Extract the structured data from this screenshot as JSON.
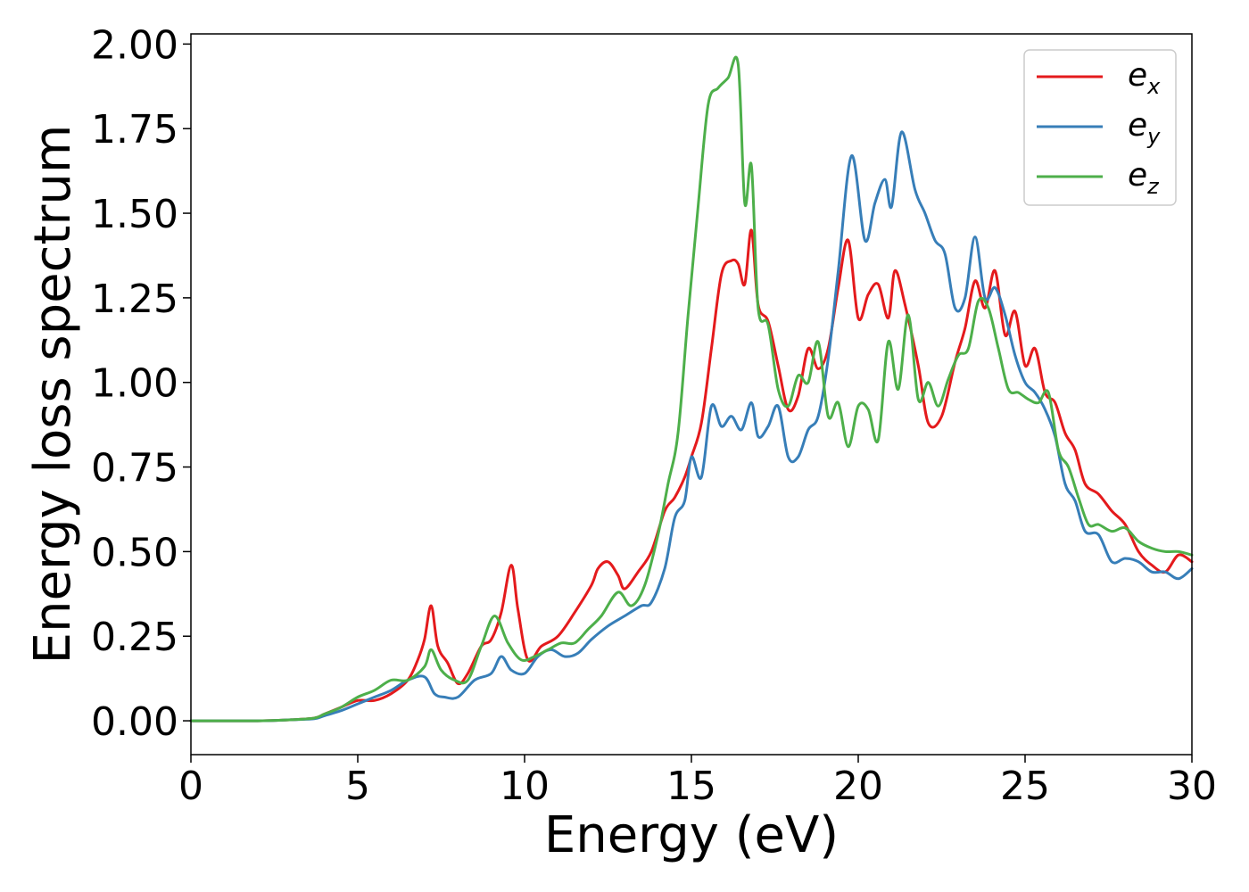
{
  "chart_data": {
    "type": "line",
    "title": "",
    "xlabel": "Energy (eV)",
    "ylabel": "Energy loss spectrum",
    "xlim": [
      0,
      30
    ],
    "ylim": [
      -0.1,
      2.03
    ],
    "xticks": [
      0,
      5,
      10,
      15,
      20,
      25,
      30
    ],
    "xtick_labels": [
      "0",
      "5",
      "10",
      "15",
      "20",
      "25",
      "30"
    ],
    "yticks": [
      0.0,
      0.25,
      0.5,
      0.75,
      1.0,
      1.25,
      1.5,
      1.75,
      2.0
    ],
    "ytick_labels": [
      "0.00",
      "0.25",
      "0.50",
      "0.75",
      "1.00",
      "1.25",
      "1.50",
      "1.75",
      "2.00"
    ],
    "grid": false,
    "legend_position": "top-right",
    "series": [
      {
        "name": "e_x",
        "legend_base": "e",
        "legend_sub": "x",
        "color": "#e41a1c",
        "x": [
          0,
          2,
          3,
          3.7,
          4.0,
          4.5,
          5.0,
          5.5,
          6.0,
          6.5,
          6.8,
          7.0,
          7.2,
          7.4,
          7.7,
          8.0,
          8.3,
          8.7,
          9.0,
          9.3,
          9.6,
          9.8,
          10.1,
          10.5,
          11.0,
          11.5,
          12.0,
          12.2,
          12.5,
          12.8,
          13.0,
          13.4,
          13.8,
          14.2,
          14.5,
          14.8,
          15.0,
          15.3,
          15.6,
          15.9,
          16.2,
          16.4,
          16.6,
          16.8,
          17.0,
          17.3,
          17.6,
          17.9,
          18.2,
          18.5,
          18.8,
          19.1,
          19.4,
          19.7,
          20.0,
          20.3,
          20.6,
          20.9,
          21.1,
          21.4,
          21.8,
          22.1,
          22.5,
          22.9,
          23.2,
          23.5,
          23.8,
          24.1,
          24.4,
          24.7,
          25.0,
          25.3,
          25.6,
          25.9,
          26.2,
          26.5,
          26.8,
          27.2,
          27.6,
          28.0,
          28.4,
          28.8,
          29.2,
          29.6,
          30.0
        ],
        "y": [
          0.0,
          0.0,
          0.003,
          0.008,
          0.02,
          0.04,
          0.06,
          0.06,
          0.08,
          0.12,
          0.18,
          0.24,
          0.34,
          0.22,
          0.17,
          0.11,
          0.14,
          0.22,
          0.24,
          0.32,
          0.46,
          0.33,
          0.18,
          0.22,
          0.25,
          0.32,
          0.4,
          0.45,
          0.47,
          0.43,
          0.39,
          0.44,
          0.5,
          0.62,
          0.66,
          0.72,
          0.78,
          0.88,
          1.1,
          1.32,
          1.36,
          1.35,
          1.29,
          1.45,
          1.23,
          1.18,
          1.05,
          0.92,
          0.96,
          1.1,
          1.04,
          1.1,
          1.28,
          1.42,
          1.19,
          1.26,
          1.29,
          1.19,
          1.33,
          1.23,
          1.05,
          0.88,
          0.9,
          1.06,
          1.16,
          1.3,
          1.22,
          1.33,
          1.14,
          1.21,
          1.05,
          1.1,
          0.97,
          0.94,
          0.85,
          0.8,
          0.7,
          0.67,
          0.62,
          0.58,
          0.5,
          0.46,
          0.44,
          0.49,
          0.47
        ]
      },
      {
        "name": "e_y",
        "legend_base": "e",
        "legend_sub": "y",
        "color": "#377eb8",
        "x": [
          0,
          2,
          3,
          3.7,
          4.0,
          4.5,
          5.0,
          5.5,
          6.0,
          6.5,
          7.0,
          7.3,
          7.6,
          8.0,
          8.5,
          9.0,
          9.3,
          9.6,
          10.0,
          10.4,
          10.8,
          11.2,
          11.6,
          12.0,
          12.5,
          13.0,
          13.5,
          13.8,
          14.2,
          14.5,
          14.8,
          15.0,
          15.3,
          15.6,
          15.9,
          16.2,
          16.5,
          16.8,
          17.0,
          17.3,
          17.6,
          17.9,
          18.2,
          18.5,
          18.8,
          19.1,
          19.4,
          19.8,
          20.2,
          20.5,
          20.8,
          21.0,
          21.3,
          21.7,
          22.0,
          22.3,
          22.6,
          22.9,
          23.2,
          23.5,
          23.8,
          24.1,
          24.4,
          24.7,
          25.0,
          25.3,
          25.6,
          25.9,
          26.2,
          26.5,
          26.8,
          27.2,
          27.6,
          28.0,
          28.4,
          28.8,
          29.2,
          29.6,
          30.0
        ],
        "y": [
          0.0,
          0.0,
          0.003,
          0.006,
          0.015,
          0.03,
          0.05,
          0.07,
          0.09,
          0.12,
          0.13,
          0.08,
          0.07,
          0.07,
          0.12,
          0.14,
          0.19,
          0.15,
          0.14,
          0.19,
          0.21,
          0.19,
          0.2,
          0.24,
          0.28,
          0.31,
          0.34,
          0.35,
          0.45,
          0.6,
          0.65,
          0.78,
          0.72,
          0.93,
          0.87,
          0.9,
          0.86,
          0.94,
          0.84,
          0.87,
          0.93,
          0.78,
          0.78,
          0.86,
          0.9,
          1.07,
          1.33,
          1.67,
          1.42,
          1.53,
          1.6,
          1.52,
          1.74,
          1.57,
          1.5,
          1.42,
          1.38,
          1.22,
          1.25,
          1.43,
          1.25,
          1.28,
          1.2,
          1.08,
          1.0,
          0.97,
          0.92,
          0.84,
          0.7,
          0.65,
          0.56,
          0.55,
          0.47,
          0.48,
          0.47,
          0.44,
          0.44,
          0.42,
          0.45
        ]
      },
      {
        "name": "e_z",
        "legend_base": "e",
        "legend_sub": "z",
        "color": "#4daf4a",
        "x": [
          0,
          2,
          3,
          3.7,
          4.0,
          4.5,
          5.0,
          5.5,
          6.0,
          6.5,
          7.0,
          7.2,
          7.5,
          7.9,
          8.3,
          8.7,
          9.1,
          9.5,
          9.9,
          10.3,
          10.7,
          11.1,
          11.5,
          11.9,
          12.3,
          12.8,
          13.2,
          13.6,
          14.0,
          14.3,
          14.6,
          14.9,
          15.2,
          15.5,
          15.8,
          16.1,
          16.4,
          16.6,
          16.8,
          17.0,
          17.3,
          17.6,
          17.9,
          18.2,
          18.5,
          18.8,
          19.1,
          19.4,
          19.7,
          20.0,
          20.3,
          20.6,
          20.9,
          21.2,
          21.5,
          21.8,
          22.1,
          22.4,
          22.7,
          23.0,
          23.3,
          23.6,
          23.9,
          24.2,
          24.5,
          24.8,
          25.1,
          25.4,
          25.7,
          26.0,
          26.3,
          26.6,
          26.9,
          27.2,
          27.6,
          28.0,
          28.4,
          28.8,
          29.2,
          29.6,
          30.0
        ],
        "y": [
          0.0,
          0.0,
          0.003,
          0.008,
          0.02,
          0.04,
          0.07,
          0.09,
          0.12,
          0.12,
          0.16,
          0.21,
          0.15,
          0.12,
          0.12,
          0.22,
          0.31,
          0.23,
          0.18,
          0.19,
          0.21,
          0.23,
          0.23,
          0.27,
          0.31,
          0.38,
          0.34,
          0.4,
          0.55,
          0.7,
          0.85,
          1.2,
          1.52,
          1.82,
          1.87,
          1.9,
          1.94,
          1.53,
          1.64,
          1.22,
          1.17,
          0.98,
          0.93,
          1.02,
          1.0,
          1.12,
          0.9,
          0.94,
          0.81,
          0.93,
          0.92,
          0.83,
          1.12,
          0.98,
          1.2,
          0.95,
          1.0,
          0.93,
          1.01,
          1.08,
          1.1,
          1.24,
          1.22,
          1.1,
          0.98,
          0.97,
          0.95,
          0.94,
          0.97,
          0.8,
          0.75,
          0.66,
          0.58,
          0.58,
          0.56,
          0.57,
          0.53,
          0.51,
          0.5,
          0.5,
          0.49
        ]
      }
    ]
  }
}
